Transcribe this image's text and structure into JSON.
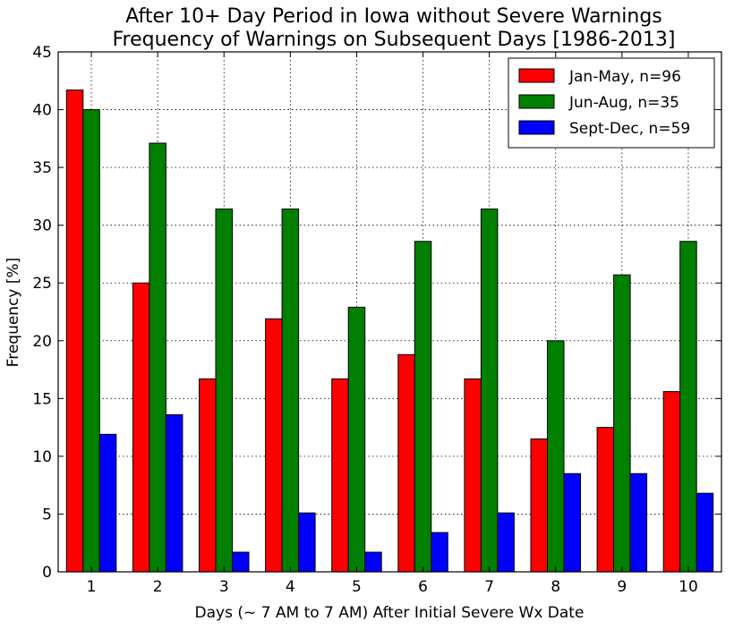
{
  "chart_data": {
    "type": "bar",
    "title_lines": [
      "After 10+ Day Period in Iowa without Severe Warnings",
      "Frequency of Warnings on Subsequent Days [1986-2013]"
    ],
    "xlabel": "Days (~ 7 AM to 7 AM) After Initial Severe Wx Date",
    "ylabel": "Frequency [%]",
    "categories": [
      "1",
      "2",
      "3",
      "4",
      "5",
      "6",
      "7",
      "8",
      "9",
      "10"
    ],
    "ylim": [
      0,
      45
    ],
    "yticks": [
      "0",
      "5",
      "10",
      "15",
      "20",
      "25",
      "30",
      "35",
      "40",
      "45"
    ],
    "grid": true,
    "legend_position": "top-right",
    "series": [
      {
        "name": "Jan-May, n=96",
        "color": "#ff0000",
        "values": [
          41.7,
          25.0,
          16.7,
          21.9,
          16.7,
          18.8,
          16.7,
          11.5,
          12.5,
          15.6
        ]
      },
      {
        "name": "Jun-Aug, n=35",
        "color": "#007f00",
        "values": [
          40.0,
          37.1,
          31.4,
          31.4,
          22.9,
          28.6,
          31.4,
          20.0,
          25.7,
          28.6
        ]
      },
      {
        "name": "Sept-Dec, n=59",
        "color": "#0000ff",
        "values": [
          11.9,
          13.6,
          1.7,
          5.1,
          1.7,
          3.4,
          5.1,
          8.5,
          8.5,
          6.8
        ]
      }
    ]
  }
}
